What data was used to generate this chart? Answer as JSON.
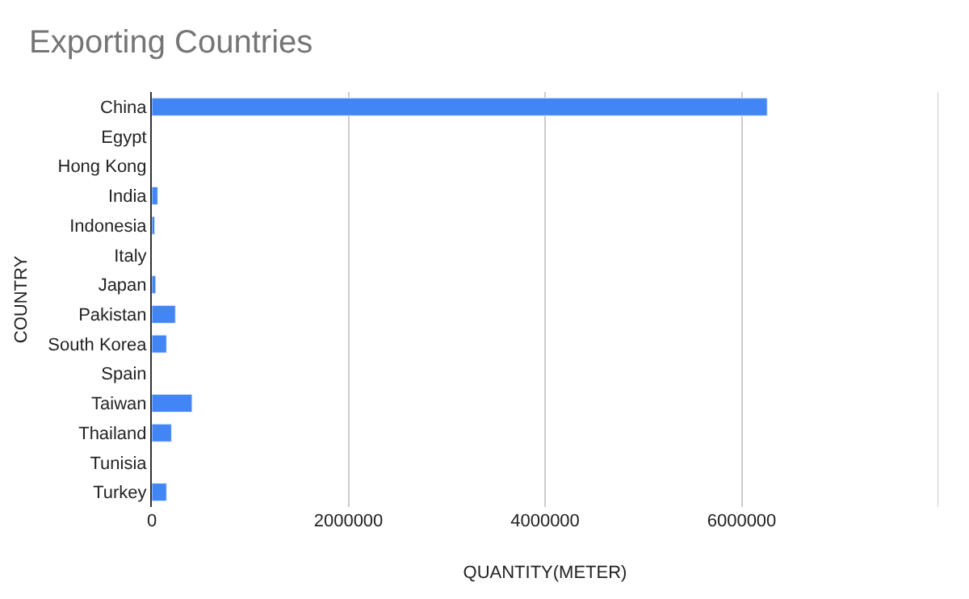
{
  "chart_data": {
    "type": "bar",
    "orientation": "horizontal",
    "title": "Exporting Countries",
    "xlabel": "QUANTITY(METER)",
    "ylabel": "COUNTRY",
    "categories": [
      "China",
      "Egypt",
      "Hong Kong",
      "India",
      "Indonesia",
      "Italy",
      "Japan",
      "Pakistan",
      "South Korea",
      "Spain",
      "Taiwan",
      "Thailand",
      "Tunisia",
      "Turkey"
    ],
    "values": [
      6260000,
      null,
      null,
      60000,
      30000,
      null,
      40000,
      240000,
      150000,
      null,
      410000,
      200000,
      null,
      150000
    ],
    "color": "#4285f4",
    "xlim": [
      0,
      8000000
    ],
    "xticks": [
      0,
      2000000,
      4000000,
      6000000,
      {
        "value": 8000000,
        "label": null
      }
    ],
    "grid": "x",
    "legend": false
  }
}
